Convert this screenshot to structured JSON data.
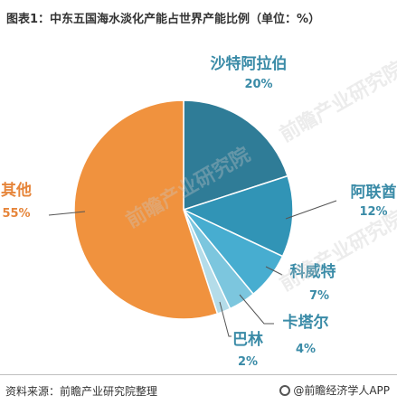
{
  "title": "图表1：中东五国海水淡化产能占世界产能比例（单位：%）",
  "source": "资料来源：前瞻产业研究院整理",
  "brand": "@前瞻经济学人APP",
  "watermark": "前瞻产业研究院",
  "chart_data": {
    "type": "pie",
    "labels": [
      "沙特阿拉伯",
      "阿联酋",
      "科威特",
      "卡塔尔",
      "巴林",
      "其他"
    ],
    "values": [
      20,
      12,
      7,
      4,
      2,
      55
    ],
    "value_labels": [
      "20%",
      "12%",
      "7%",
      "4%",
      "2%",
      "55%"
    ],
    "colors": [
      "#2f7c97",
      "#3194b6",
      "#47add0",
      "#7cc6de",
      "#b4dce9",
      "#f0923e"
    ],
    "label_colors": [
      "#3a8ba7",
      "#3a8ba7",
      "#3a8ba7",
      "#3a8ba7",
      "#3a8ba7",
      "#e6853a"
    ]
  }
}
